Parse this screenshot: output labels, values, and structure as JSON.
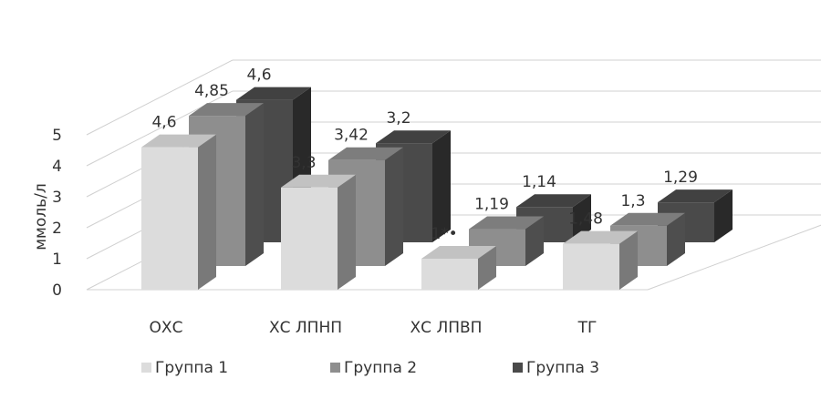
{
  "chart_data": {
    "type": "bar",
    "title": "",
    "ylabel": "ммоль/л",
    "xlabel": "",
    "ylim": [
      0,
      5
    ],
    "yticks": [
      "0",
      "1",
      "2",
      "3",
      "4",
      "5"
    ],
    "grid": true,
    "legend_position": "bottom",
    "categories": [
      "ОХС",
      "ХС ЛПНП",
      "ХС ЛПВП",
      "ТГ"
    ],
    "series": [
      {
        "name": "Группа 1",
        "values": [
          4.6,
          3.3,
          1,
          1.48
        ],
        "labels": [
          "4,6",
          "3,3",
          "1*•",
          "1,48"
        ],
        "color": "#dcdcdc"
      },
      {
        "name": "Группа 2",
        "values": [
          4.85,
          3.42,
          1.19,
          1.3
        ],
        "labels": [
          "4,85",
          "3,42",
          "1,19",
          "1,3"
        ],
        "color": "#8e8e8e"
      },
      {
        "name": "Группа 3",
        "values": [
          4.6,
          3.2,
          1.14,
          1.29
        ],
        "labels": [
          "4,6",
          "3,2",
          "1,14",
          "1,29"
        ],
        "color": "#4a4a4a"
      }
    ]
  }
}
